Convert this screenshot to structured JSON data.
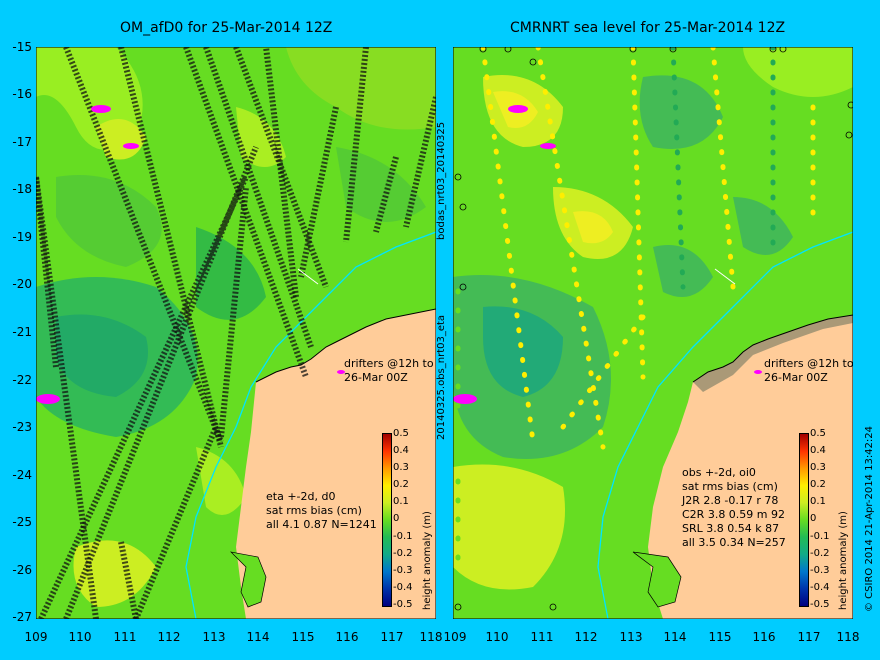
{
  "left_panel": {
    "title": "OM_afD0 for 25-Mar-2014 12Z",
    "drifters_label_1": "drifters @12h to",
    "drifters_label_2": "26-Mar 00Z",
    "stats": [
      "eta +-2d, d0",
      "sat rms bias (cm)",
      "all 4.1 0.87 N=1241"
    ]
  },
  "right_panel": {
    "title": "CMRNRT sea level  for 25-Mar-2014 12Z",
    "drifters_label_1": "drifters @12h to",
    "drifters_label_2": "26-Mar 00Z",
    "stats": [
      "obs +-2d, oi0",
      "sat rms bias (cm)",
      "J2R   2.8 -0.17 r 78",
      "C2R   3.8 0.59 m 92",
      "SRL   3.8 0.54 k 87",
      "all   3.5 0.34 N=257"
    ]
  },
  "side_labels": {
    "bodas": "bodas_nrt03_20140325",
    "obs": "20140325.obs_nrt03_eta",
    "credit": "© CSIRO 2014   21-Apr-2014 13:42:24"
  },
  "colorbar_label": "height anomaly (m)",
  "colorbar_ticks": [
    "0.5",
    "0.4",
    "0.3",
    "0.2",
    "0.1",
    "0",
    "-0.1",
    "-0.2",
    "-0.3",
    "-0.4",
    "-0.5"
  ],
  "lat_ticks": [
    "-15",
    "-16",
    "-17",
    "-18",
    "-19",
    "-20",
    "-21",
    "-22",
    "-23",
    "-24",
    "-25",
    "-26",
    "-27"
  ],
  "lon_ticks_left": [
    "109",
    "110",
    "111",
    "112",
    "113",
    "114",
    "115",
    "116",
    "117",
    "118"
  ],
  "lon_ticks_right": [
    "109",
    "110",
    "111",
    "112",
    "113",
    "114",
    "115",
    "116",
    "117",
    "118"
  ],
  "colors": {
    "background": "#00ccff",
    "sea_green": "#66dd22",
    "land": "#ffcc99",
    "drifter": "#ff00ff",
    "coast_current": "#00e5ff"
  }
}
